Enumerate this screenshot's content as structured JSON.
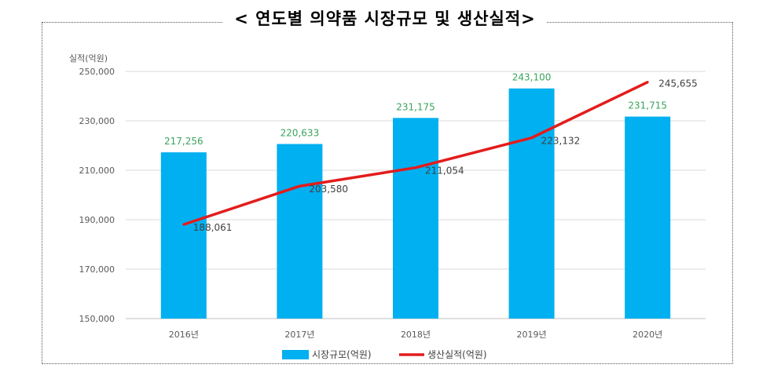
{
  "title": "< 연도별 의약품 시장규모 및 생산실적>",
  "chart_data": {
    "type": "bar",
    "ylabel": "실적(억원)",
    "ylim": [
      150000,
      250000
    ],
    "yticks": [
      "250,000",
      "230,000",
      "210,000",
      "190,000",
      "170,000",
      "150,000"
    ],
    "ytick_values": [
      250000,
      230000,
      210000,
      190000,
      170000,
      150000
    ],
    "categories": [
      "2016년",
      "2017년",
      "2018년",
      "2019년",
      "2020년"
    ],
    "series": [
      {
        "name": "시장규모(억원)",
        "type": "bar",
        "color": "#00b0f0",
        "values": [
          217256,
          220633,
          231175,
          243100,
          231715
        ],
        "labels": [
          "217,256",
          "220,633",
          "231,175",
          "243,100",
          "231,715"
        ]
      },
      {
        "name": "생산실적(억원)",
        "type": "line",
        "color": "#e31c1c",
        "values": [
          188061,
          203580,
          211054,
          223132,
          245655
        ],
        "labels": [
          "188,061",
          "203,580",
          "211,054",
          "223,132",
          "245,655"
        ]
      }
    ],
    "grid": true,
    "legend": "bottom"
  }
}
